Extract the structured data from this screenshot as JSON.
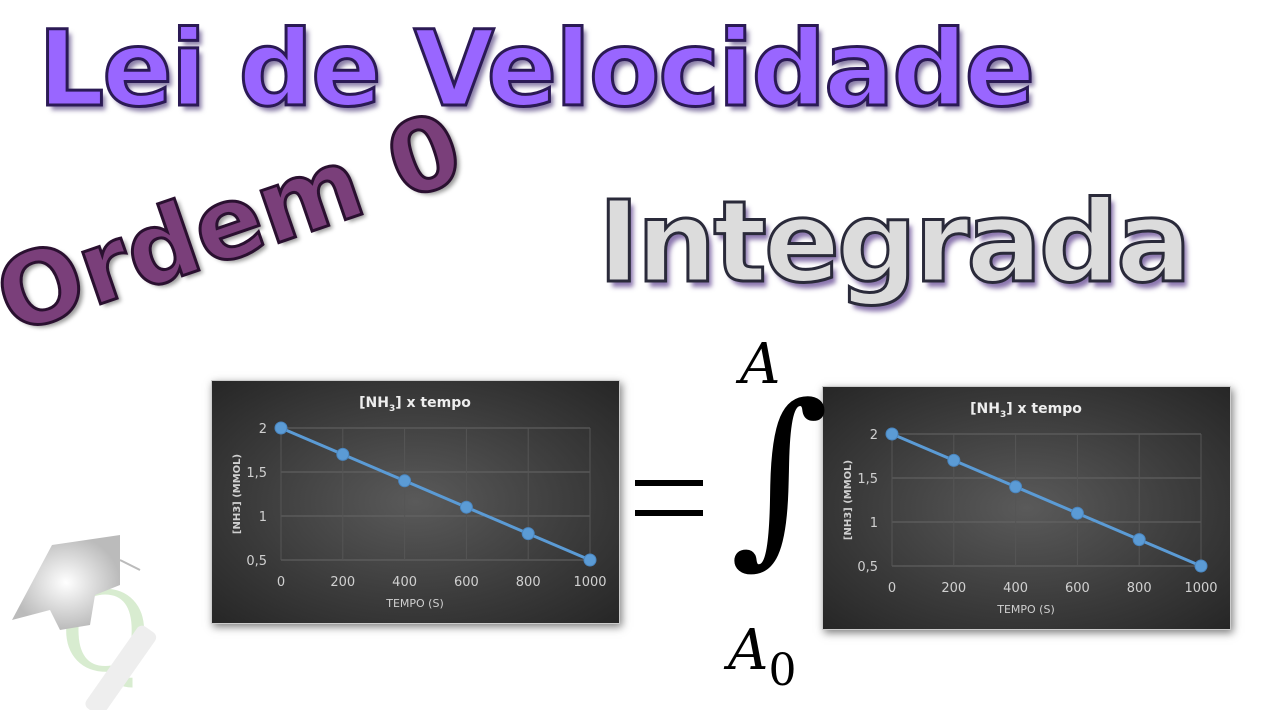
{
  "titles": {
    "line1": "Lei de Velocidade",
    "line2": "Ordem 0",
    "line3": "Integrada"
  },
  "colors": {
    "line1": "#9966ff",
    "line2": "#7a3f7a",
    "line3": "#dcdcdc",
    "series": "#5b9bd5"
  },
  "equation": {
    "upper": "A",
    "lower": "A",
    "lower_sub": "0"
  },
  "logo": {
    "text": "Q",
    "icon": "graduation-cap-icon"
  },
  "chart_data": [
    {
      "type": "line",
      "title": "[NH3] x tempo",
      "title_main": "[NH",
      "title_sub": "3",
      "title_rest": "] x tempo",
      "xlabel": "TEMPO (S)",
      "ylabel": "[NH3] (MMOL)",
      "ylabel_main": "[NH",
      "ylabel_sub": "3",
      "ylabel_rest": "] (MMOL)",
      "x": [
        0,
        200,
        400,
        600,
        800,
        1000
      ],
      "y": [
        2,
        1.7,
        1.4,
        1.1,
        0.8,
        0.5
      ],
      "xticks": [
        "0",
        "200",
        "400",
        "600",
        "800",
        "1000"
      ],
      "yticks": [
        "0,5",
        "1",
        "1,5",
        "2"
      ],
      "ylim": [
        0.5,
        2
      ],
      "xlim": [
        0,
        1000
      ],
      "grid": true
    },
    {
      "type": "line",
      "title": "[NH3] x tempo",
      "title_main": "[NH",
      "title_sub": "3",
      "title_rest": "] x tempo",
      "xlabel": "TEMPO (S)",
      "ylabel": "[NH3] (MMOL)",
      "ylabel_main": "[NH",
      "ylabel_sub": "3",
      "ylabel_rest": "] (MMOL)",
      "x": [
        0,
        200,
        400,
        600,
        800,
        1000
      ],
      "y": [
        2,
        1.7,
        1.4,
        1.1,
        0.8,
        0.5
      ],
      "xticks": [
        "0",
        "200",
        "400",
        "600",
        "800",
        "1000"
      ],
      "yticks": [
        "0,5",
        "1",
        "1,5",
        "2"
      ],
      "ylim": [
        0.5,
        2
      ],
      "xlim": [
        0,
        1000
      ],
      "grid": true
    }
  ]
}
